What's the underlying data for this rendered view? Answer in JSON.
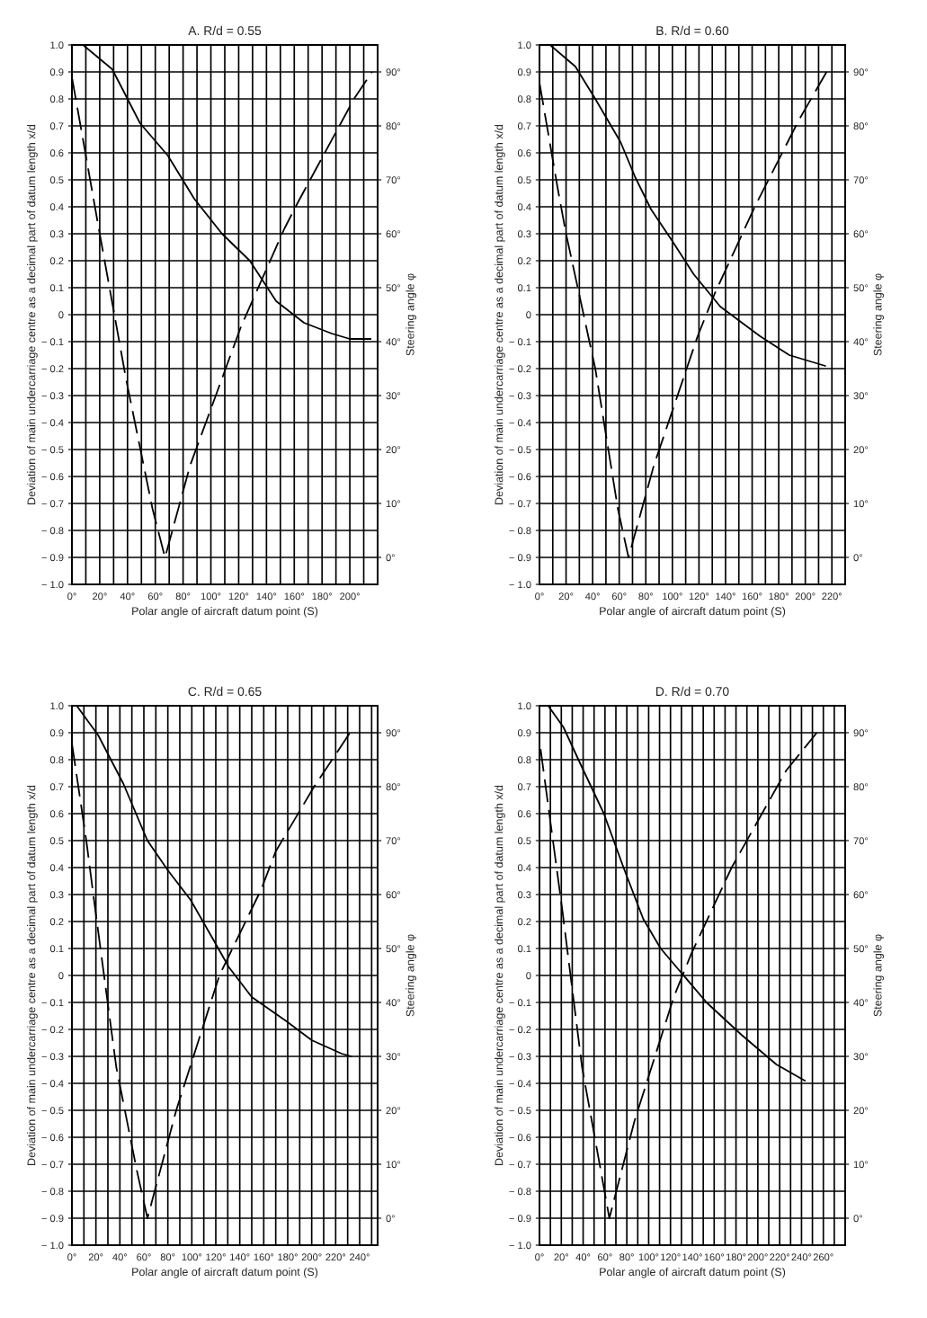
{
  "chart_data": [
    {
      "type": "line",
      "title": "A. R/d = 0.55",
      "xlabel": "Polar angle of aircraft datum point (S)",
      "ylabel": "Deviation of main undercarriage centre as a decimal part of datum length x/d",
      "y2label": "Steering angle φ",
      "xlim": [
        0,
        220
      ],
      "xticks": [
        {
          "value": 0,
          "label": "0°"
        },
        {
          "value": 10,
          "label": null
        },
        {
          "value": 20,
          "label": "20°"
        },
        {
          "value": 30,
          "label": null
        },
        {
          "value": 40,
          "label": "40°"
        },
        {
          "value": 50,
          "label": null
        },
        {
          "value": 60,
          "label": "60°"
        },
        {
          "value": 70,
          "label": null
        },
        {
          "value": 80,
          "label": "80°"
        },
        {
          "value": 90,
          "label": null
        },
        {
          "value": 100,
          "label": "100°"
        },
        {
          "value": 110,
          "label": null
        },
        {
          "value": 120,
          "label": "120°"
        },
        {
          "value": 130,
          "label": null
        },
        {
          "value": 140,
          "label": "140°"
        },
        {
          "value": 150,
          "label": null
        },
        {
          "value": 160,
          "label": "160°"
        },
        {
          "value": 170,
          "label": null
        },
        {
          "value": 180,
          "label": "180°"
        },
        {
          "value": 190,
          "label": null
        },
        {
          "value": 200,
          "label": "200°"
        },
        {
          "value": 210,
          "label": null
        }
      ],
      "ylim": [
        -1.0,
        1.0
      ],
      "yticks": [
        {
          "value": 1.0,
          "label": "1.0"
        },
        {
          "value": 0.9,
          "label": "0.9"
        },
        {
          "value": 0.8,
          "label": "0.8"
        },
        {
          "value": 0.7,
          "label": "0.7"
        },
        {
          "value": 0.6,
          "label": "0.6"
        },
        {
          "value": 0.5,
          "label": "0.5"
        },
        {
          "value": 0.4,
          "label": "0.4"
        },
        {
          "value": 0.3,
          "label": "0.3"
        },
        {
          "value": 0.2,
          "label": "0.2"
        },
        {
          "value": 0.1,
          "label": "0.1"
        },
        0,
        {
          "value": -0.1,
          "label": "− 0.1"
        },
        {
          "value": -0.2,
          "label": "− 0.2"
        },
        {
          "value": -0.3,
          "label": "− 0.3"
        },
        {
          "value": -0.4,
          "label": "− 0.4"
        },
        {
          "value": -0.5,
          "label": "− 0.5"
        },
        {
          "value": -0.6,
          "label": "− 0.6"
        },
        {
          "value": -0.7,
          "label": "− 0.7"
        },
        {
          "value": -0.8,
          "label": "− 0.8"
        },
        {
          "value": -0.9,
          "label": "− 0.9"
        },
        {
          "value": -1.0,
          "label": "− 1.0"
        }
      ],
      "y2lim": [
        -5,
        95
      ],
      "y2ticks": [
        {
          "value": 0,
          "label": "0°"
        },
        {
          "value": 10,
          "label": "10°"
        },
        {
          "value": 20,
          "label": "20°"
        },
        {
          "value": 30,
          "label": "30°"
        },
        {
          "value": 40,
          "label": "40°"
        },
        {
          "value": 50,
          "label": "50°"
        },
        {
          "value": 60,
          "label": "60°"
        },
        {
          "value": 70,
          "label": "70°"
        },
        {
          "value": 80,
          "label": "80°"
        },
        {
          "value": 90,
          "label": "90°"
        }
      ],
      "grid": true,
      "series": [
        {
          "color": "#000000",
          "line_style": "solid",
          "x": [
            8,
            29,
            49,
            69,
            88,
            108,
            128,
            147,
            167,
            187,
            200,
            215
          ],
          "values": [
            1.0,
            0.91,
            0.71,
            0.59,
            0.43,
            0.3,
            0.2,
            0.05,
            -0.03,
            -0.07,
            -0.09,
            -0.09
          ]
        },
        {
          "color": "#000000",
          "line_style": "dashed",
          "axis": "y2",
          "x": [
            0,
            20,
            39,
            58,
            67,
            85,
            122,
            153,
            163,
            203,
            216
          ],
          "values": [
            89,
            60,
            33,
            9,
            0,
            17,
            43,
            61,
            66,
            85,
            90
          ]
        }
      ]
    },
    {
      "type": "line",
      "title": "B. R/d = 0.60",
      "xlabel": "Polar angle of aircraft datum point (S)",
      "ylabel": "Deviation of main undercarriage centre as a decimal part of datum length x/d",
      "y2label": "Steering angle φ",
      "xlim": [
        0,
        230
      ],
      "xticks": [
        {
          "value": 0,
          "label": "0°"
        },
        {
          "value": 10,
          "label": null
        },
        {
          "value": 20,
          "label": "20°"
        },
        {
          "value": 30,
          "label": null
        },
        {
          "value": 40,
          "label": "40°"
        },
        {
          "value": 50,
          "label": null
        },
        {
          "value": 60,
          "label": "60°"
        },
        {
          "value": 70,
          "label": null
        },
        {
          "value": 80,
          "label": "80°"
        },
        {
          "value": 90,
          "label": null
        },
        {
          "value": 100,
          "label": "100°"
        },
        {
          "value": 110,
          "label": null
        },
        {
          "value": 120,
          "label": "120°"
        },
        {
          "value": 130,
          "label": null
        },
        {
          "value": 140,
          "label": "140°"
        },
        {
          "value": 150,
          "label": null
        },
        {
          "value": 160,
          "label": "160°"
        },
        {
          "value": 170,
          "label": null
        },
        {
          "value": 180,
          "label": "180°"
        },
        {
          "value": 190,
          "label": null
        },
        {
          "value": 200,
          "label": "200°"
        },
        {
          "value": 210,
          "label": null
        },
        {
          "value": 220,
          "label": "220°"
        }
      ],
      "ylim": [
        -1.0,
        1.0
      ],
      "yticks": [
        {
          "value": 1.0,
          "label": "1.0"
        },
        {
          "value": 0.9,
          "label": "0.9"
        },
        {
          "value": 0.8,
          "label": "0.8"
        },
        {
          "value": 0.7,
          "label": "0.7"
        },
        {
          "value": 0.6,
          "label": "0.6"
        },
        {
          "value": 0.5,
          "label": "0.5"
        },
        {
          "value": 0.4,
          "label": "0.4"
        },
        {
          "value": 0.3,
          "label": "0.3"
        },
        {
          "value": 0.2,
          "label": "0.2"
        },
        {
          "value": 0.1,
          "label": "0.1"
        },
        0,
        {
          "value": -0.1,
          "label": "− 0.1"
        },
        {
          "value": -0.2,
          "label": "− 0.2"
        },
        {
          "value": -0.3,
          "label": "− 0.3"
        },
        {
          "value": -0.4,
          "label": "− 0.4"
        },
        {
          "value": -0.5,
          "label": "− 0.5"
        },
        {
          "value": -0.6,
          "label": "− 0.6"
        },
        {
          "value": -0.7,
          "label": "− 0.7"
        },
        {
          "value": -0.8,
          "label": "− 0.8"
        },
        {
          "value": -0.9,
          "label": "− 0.9"
        },
        {
          "value": -1.0,
          "label": "− 1.0"
        }
      ],
      "y2lim": [
        -5,
        95
      ],
      "y2ticks": [
        {
          "value": 0,
          "label": "0°"
        },
        {
          "value": 10,
          "label": "10°"
        },
        {
          "value": 20,
          "label": "20°"
        },
        {
          "value": 30,
          "label": "30°"
        },
        {
          "value": 40,
          "label": "40°"
        },
        {
          "value": 50,
          "label": "50°"
        },
        {
          "value": 60,
          "label": "60°"
        },
        {
          "value": 70,
          "label": "70°"
        },
        {
          "value": 80,
          "label": "80°"
        },
        {
          "value": 90,
          "label": "90°"
        }
      ],
      "grid": true,
      "series": [
        {
          "color": "#000000",
          "line_style": "solid",
          "x": [
            8,
            27,
            42,
            61,
            72,
            84,
            99,
            116,
            136,
            166,
            188,
            215
          ],
          "values": [
            1.0,
            0.92,
            0.8,
            0.64,
            0.51,
            0.39,
            0.28,
            0.15,
            0.03,
            -0.08,
            -0.15,
            -0.19
          ]
        },
        {
          "color": "#000000",
          "line_style": "dashed",
          "axis": "y2",
          "x": [
            0,
            14,
            20,
            42,
            59,
            67,
            86,
            119,
            132,
            162,
            195,
            216
          ],
          "values": [
            88,
            68,
            60,
            35,
            9,
            0,
            17,
            41,
            49,
            65,
            81,
            90
          ]
        }
      ]
    },
    {
      "type": "line",
      "title": "C. R/d = 0.65",
      "xlabel": "Polar angle of aircraft datum point (S)",
      "ylabel": "Deviation of main undercarriage centre as a decimal part of datum length x/d",
      "y2label": "Steering angle φ",
      "xlim": [
        0,
        255
      ],
      "xticks": [
        {
          "value": 0,
          "label": "0°"
        },
        {
          "value": 10,
          "label": null
        },
        {
          "value": 20,
          "label": "20°"
        },
        {
          "value": 30,
          "label": null
        },
        {
          "value": 40,
          "label": "40°"
        },
        {
          "value": 50,
          "label": null
        },
        {
          "value": 60,
          "label": "60°"
        },
        {
          "value": 70,
          "label": null
        },
        {
          "value": 80,
          "label": "80°"
        },
        {
          "value": 90,
          "label": null
        },
        {
          "value": 100,
          "label": "100°"
        },
        {
          "value": 110,
          "label": null
        },
        {
          "value": 120,
          "label": "120°"
        },
        {
          "value": 130,
          "label": null
        },
        {
          "value": 140,
          "label": "140°"
        },
        {
          "value": 150,
          "label": null
        },
        {
          "value": 160,
          "label": "160°"
        },
        {
          "value": 170,
          "label": null
        },
        {
          "value": 180,
          "label": "180°"
        },
        {
          "value": 190,
          "label": null
        },
        {
          "value": 200,
          "label": "200°"
        },
        {
          "value": 210,
          "label": null
        },
        {
          "value": 220,
          "label": "220°"
        },
        {
          "value": 230,
          "label": null
        },
        {
          "value": 240,
          "label": "240°"
        },
        {
          "value": 250,
          "label": null
        }
      ],
      "ylim": [
        -1.0,
        1.0
      ],
      "yticks": [
        {
          "value": 1.0,
          "label": "1.0"
        },
        {
          "value": 0.9,
          "label": "0.9"
        },
        {
          "value": 0.8,
          "label": "0.8"
        },
        {
          "value": 0.7,
          "label": "0.7"
        },
        {
          "value": 0.6,
          "label": "0.6"
        },
        {
          "value": 0.5,
          "label": "0.5"
        },
        {
          "value": 0.4,
          "label": "0.4"
        },
        {
          "value": 0.3,
          "label": "0.3"
        },
        {
          "value": 0.2,
          "label": "0.2"
        },
        {
          "value": 0.1,
          "label": "0.1"
        },
        0,
        {
          "value": -0.1,
          "label": "− 0.1"
        },
        {
          "value": -0.2,
          "label": "− 0.2"
        },
        {
          "value": -0.3,
          "label": "− 0.3"
        },
        {
          "value": -0.4,
          "label": "− 0.4"
        },
        {
          "value": -0.5,
          "label": "− 0.5"
        },
        {
          "value": -0.6,
          "label": "− 0.6"
        },
        {
          "value": -0.7,
          "label": "− 0.7"
        },
        {
          "value": -0.8,
          "label": "− 0.8"
        },
        {
          "value": -0.9,
          "label": "− 0.9"
        },
        {
          "value": -1.0,
          "label": "− 1.0"
        }
      ],
      "y2lim": [
        -5,
        95
      ],
      "y2ticks": [
        {
          "value": 0,
          "label": "0°"
        },
        {
          "value": 10,
          "label": "10°"
        },
        {
          "value": 20,
          "label": "20°"
        },
        {
          "value": 30,
          "label": "30°"
        },
        {
          "value": 40,
          "label": "40°"
        },
        {
          "value": 50,
          "label": "50°"
        },
        {
          "value": 60,
          "label": "60°"
        },
        {
          "value": 70,
          "label": "70°"
        },
        {
          "value": 80,
          "label": "80°"
        },
        {
          "value": 90,
          "label": "90°"
        }
      ],
      "grid": true,
      "series": [
        {
          "color": "#000000",
          "line_style": "solid",
          "x": [
            4,
            22,
            43,
            63,
            80,
            99,
            117,
            131,
            150,
            179,
            200,
            225,
            233
          ],
          "values": [
            1.0,
            0.89,
            0.71,
            0.5,
            0.39,
            0.28,
            0.14,
            0.03,
            -0.08,
            -0.17,
            -0.24,
            -0.29,
            -0.3
          ]
        },
        {
          "color": "#000000",
          "line_style": "dashed",
          "axis": "y2",
          "x": [
            0,
            12,
            19,
            37,
            54,
            63,
            87,
            123,
            158,
            170,
            202,
            232
          ],
          "values": [
            88,
            70,
            58,
            28,
            9,
            0,
            20,
            45,
            61,
            68,
            80,
            90
          ]
        }
      ]
    },
    {
      "type": "line",
      "title": "D. R/d = 0.70",
      "xlabel": "Polar angle of aircraft datum point (S)",
      "ylabel": "Deviation of main undercarriage centre as a decimal part of datum length x/d",
      "y2label": "Steering angle φ",
      "xlim": [
        0,
        280
      ],
      "xticks": [
        {
          "value": 0,
          "label": "0°"
        },
        {
          "value": 10,
          "label": null
        },
        {
          "value": 20,
          "label": "20°"
        },
        {
          "value": 30,
          "label": null
        },
        {
          "value": 40,
          "label": "40°"
        },
        {
          "value": 50,
          "label": null
        },
        {
          "value": 60,
          "label": "60°"
        },
        {
          "value": 70,
          "label": null
        },
        {
          "value": 80,
          "label": "80°"
        },
        {
          "value": 90,
          "label": null
        },
        {
          "value": 100,
          "label": "100°"
        },
        {
          "value": 110,
          "label": null
        },
        {
          "value": 120,
          "label": "120°"
        },
        {
          "value": 130,
          "label": null
        },
        {
          "value": 140,
          "label": "140°"
        },
        {
          "value": 150,
          "label": null
        },
        {
          "value": 160,
          "label": "160°"
        },
        {
          "value": 170,
          "label": null
        },
        {
          "value": 180,
          "label": "180°"
        },
        {
          "value": 190,
          "label": null
        },
        {
          "value": 200,
          "label": "200°"
        },
        {
          "value": 210,
          "label": null
        },
        {
          "value": 220,
          "label": "220°"
        },
        {
          "value": 230,
          "label": null
        },
        {
          "value": 240,
          "label": "240°"
        },
        {
          "value": 250,
          "label": null
        },
        {
          "value": 260,
          "label": "260°"
        },
        {
          "value": 270,
          "label": null
        }
      ],
      "ylim": [
        -1.0,
        1.0
      ],
      "yticks": [
        {
          "value": 1.0,
          "label": "1.0"
        },
        {
          "value": 0.9,
          "label": "0.9"
        },
        {
          "value": 0.8,
          "label": "0.8"
        },
        {
          "value": 0.7,
          "label": "0.7"
        },
        {
          "value": 0.6,
          "label": "0.6"
        },
        {
          "value": 0.5,
          "label": "0.5"
        },
        {
          "value": 0.4,
          "label": "0.4"
        },
        {
          "value": 0.3,
          "label": "0.3"
        },
        {
          "value": 0.2,
          "label": "0.2"
        },
        {
          "value": 0.1,
          "label": "0.1"
        },
        0,
        {
          "value": -0.1,
          "label": "− 0.1"
        },
        {
          "value": -0.2,
          "label": "− 0.2"
        },
        {
          "value": -0.3,
          "label": "− 0.3"
        },
        {
          "value": -0.4,
          "label": "− 0.4"
        },
        {
          "value": -0.5,
          "label": "− 0.5"
        },
        {
          "value": -0.6,
          "label": "− 0.6"
        },
        {
          "value": -0.7,
          "label": "− 0.7"
        },
        {
          "value": -0.8,
          "label": "− 0.8"
        },
        {
          "value": -0.9,
          "label": "− 0.9"
        },
        {
          "value": -1.0,
          "label": "− 1.0"
        }
      ],
      "y2lim": [
        -5,
        95
      ],
      "y2ticks": [
        {
          "value": 0,
          "label": "0°"
        },
        {
          "value": 10,
          "label": "10°"
        },
        {
          "value": 20,
          "label": "20°"
        },
        {
          "value": 30,
          "label": "30°"
        },
        {
          "value": 40,
          "label": "40°"
        },
        {
          "value": 50,
          "label": "50°"
        },
        {
          "value": 60,
          "label": "60°"
        },
        {
          "value": 70,
          "label": "70°"
        },
        {
          "value": 80,
          "label": "80°"
        },
        {
          "value": 90,
          "label": "90°"
        }
      ],
      "grid": true,
      "series": [
        {
          "color": "#000000",
          "line_style": "solid",
          "x": [
            8,
            22,
            38,
            59,
            77,
            95,
            111,
            132,
            153,
            185,
            217,
            243
          ],
          "values": [
            1.0,
            0.92,
            0.78,
            0.6,
            0.4,
            0.21,
            0.1,
            0.0,
            -0.1,
            -0.22,
            -0.33,
            -0.39
          ]
        },
        {
          "color": "#000000",
          "line_style": "dashed",
          "axis": "y2",
          "x": [
            1,
            15,
            21,
            39,
            56,
            64,
            87,
            123,
            139,
            176,
            226,
            254
          ],
          "values": [
            87,
            66,
            57,
            28,
            9,
            0,
            18,
            41,
            49,
            65,
            83,
            90
          ]
        }
      ]
    }
  ]
}
